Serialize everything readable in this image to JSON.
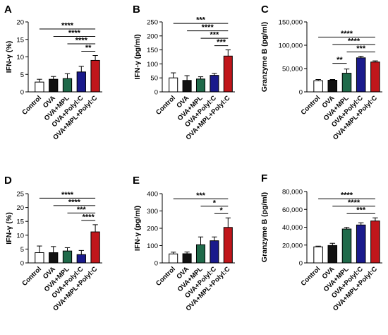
{
  "colors": {
    "white": "#ffffff",
    "black": "#111111",
    "green": "#1f6a4a",
    "navy": "#1a1a8c",
    "red": "#c0161b"
  },
  "chart_data": [
    {
      "panel": "A",
      "type": "bar",
      "ylabel": "IFN-γ (%)",
      "categories": [
        "Control",
        "OVA",
        "OVA+MPL",
        "OVA+Polyl:C",
        "OVA+MPL+Polyl:C"
      ],
      "values": [
        2.8,
        3.6,
        3.8,
        5.7,
        9.0
      ],
      "errors": [
        0.8,
        0.8,
        1.4,
        1.6,
        1.4
      ],
      "fill_colors": [
        "white",
        "black",
        "green",
        "navy",
        "red"
      ],
      "ylim": [
        0,
        20
      ],
      "yticks": [
        "0",
        "5",
        "10",
        "15",
        "20"
      ],
      "significance": [
        {
          "from": 0,
          "to": 4,
          "label": "****"
        },
        {
          "from": 1,
          "to": 4,
          "label": "****"
        },
        {
          "from": 2,
          "to": 4,
          "label": "****"
        },
        {
          "from": 3,
          "to": 4,
          "label": "**"
        }
      ]
    },
    {
      "panel": "B",
      "type": "bar",
      "ylabel": "IFN-γ (pg/ml)",
      "categories": [
        "Control",
        "OVA",
        "OVA+MPL",
        "OVA+Polyl:C",
        "OVA+MPL+Polyl:C"
      ],
      "values": [
        50,
        41,
        46,
        59,
        128
      ],
      "errors": [
        18,
        17,
        8,
        7,
        22
      ],
      "fill_colors": [
        "white",
        "black",
        "green",
        "navy",
        "red"
      ],
      "ylim": [
        0,
        250
      ],
      "yticks": [
        "0",
        "50",
        "100",
        "150",
        "200",
        "250"
      ],
      "significance": [
        {
          "from": 0,
          "to": 4,
          "label": "***"
        },
        {
          "from": 1,
          "to": 4,
          "label": "****"
        },
        {
          "from": 2,
          "to": 4,
          "label": "***"
        },
        {
          "from": 3,
          "to": 4,
          "label": "***"
        }
      ]
    },
    {
      "panel": "C",
      "type": "bar",
      "ylabel": "Granzyme B (pg/ml)",
      "categories": [
        "Control",
        "OVA",
        "OVA+MPL",
        "OVA+Polyl:C",
        "OVA+MPL+Polyl:C"
      ],
      "values": [
        24000,
        25000,
        40000,
        73000,
        64000
      ],
      "errors": [
        2500,
        1500,
        9000,
        3500,
        2500
      ],
      "fill_colors": [
        "white",
        "black",
        "green",
        "navy",
        "red"
      ],
      "ylim": [
        0,
        150000
      ],
      "yticks": [
        "0",
        "50,000",
        "100,000",
        "150,000"
      ],
      "significance": [
        {
          "from": 0,
          "to": 4,
          "label": "****"
        },
        {
          "from": 1,
          "to": 4,
          "label": "****"
        },
        {
          "from": 2,
          "to": 4,
          "label": "***"
        },
        {
          "from": 1,
          "to": 2,
          "label": "**"
        }
      ]
    },
    {
      "panel": "D",
      "type": "bar",
      "ylabel": "IFN-γ (%)",
      "categories": [
        "Control",
        "OVA",
        "OVA+MPL",
        "OVA+Polyl:C",
        "OVA+MPL+Polyl:C"
      ],
      "values": [
        3.7,
        3.7,
        4.3,
        3.0,
        11.2
      ],
      "errors": [
        2.4,
        2.2,
        1.2,
        1.5,
        2.6
      ],
      "fill_colors": [
        "white",
        "black",
        "green",
        "navy",
        "red"
      ],
      "ylim": [
        0,
        25
      ],
      "yticks": [
        "0",
        "5",
        "10",
        "15",
        "20",
        "25"
      ],
      "significance": [
        {
          "from": 0,
          "to": 4,
          "label": "****"
        },
        {
          "from": 1,
          "to": 4,
          "label": "****"
        },
        {
          "from": 2,
          "to": 4,
          "label": "***"
        },
        {
          "from": 3,
          "to": 4,
          "label": "****"
        }
      ]
    },
    {
      "panel": "E",
      "type": "bar",
      "ylabel": "IFN-γ (pg/ml)",
      "categories": [
        "Control",
        "OVA",
        "OVA+MPL",
        "OVA+Polyl:C",
        "OVA+MPL+Polyl:C"
      ],
      "values": [
        52,
        53,
        105,
        128,
        205
      ],
      "errors": [
        10,
        10,
        45,
        22,
        55
      ],
      "fill_colors": [
        "white",
        "black",
        "green",
        "navy",
        "red"
      ],
      "ylim": [
        0,
        400
      ],
      "yticks": [
        "0",
        "100",
        "200",
        "300",
        "400"
      ],
      "significance": [
        {
          "from": 0,
          "to": 4,
          "label": "***"
        },
        {
          "from": 2,
          "to": 4,
          "label": "*"
        },
        {
          "from": 3,
          "to": 4,
          "label": "*"
        }
      ]
    },
    {
      "panel": "F",
      "type": "bar",
      "ylabel": "Granzyme B  (pg/ml)",
      "categories": [
        "Control",
        "OVA",
        "OVA+MPL",
        "OVA+Polyl:C",
        "OVA+MPL+Polyl:C"
      ],
      "values": [
        18000,
        19500,
        38000,
        42500,
        47000
      ],
      "errors": [
        800,
        2500,
        1800,
        2500,
        3500
      ],
      "fill_colors": [
        "white",
        "black",
        "green",
        "navy",
        "red"
      ],
      "ylim": [
        0,
        80000
      ],
      "yticks": [
        "0",
        "20,000",
        "40,000",
        "60,000",
        "80,000"
      ],
      "significance": [
        {
          "from": 0,
          "to": 4,
          "label": "****"
        },
        {
          "from": 1,
          "to": 4,
          "label": "****"
        },
        {
          "from": 2,
          "to": 4,
          "label": "***"
        }
      ]
    }
  ]
}
